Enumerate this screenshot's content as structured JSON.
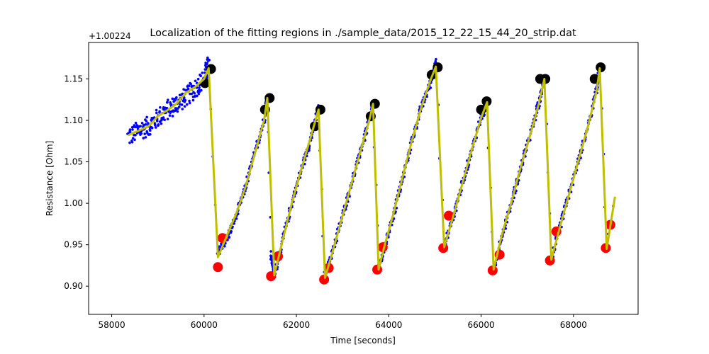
{
  "chart_data": {
    "type": "scatter",
    "title": "Localization of the fitting regions in ./sample_data/2015_12_22_15_44_20_strip.dat",
    "xlabel": "Time [seconds]",
    "ylabel": "Resistance [Ohm]",
    "offset_label": "+1.00224",
    "xlim": [
      57500,
      69400
    ],
    "ylim": [
      0.866,
      1.194
    ],
    "xticks": [
      58000,
      60000,
      62000,
      64000,
      66000,
      68000
    ],
    "yticks": [
      0.9,
      0.95,
      1.0,
      1.05,
      1.1,
      1.15
    ],
    "xtick_labels": [
      "58000",
      "60000",
      "62000",
      "64000",
      "66000",
      "68000"
    ],
    "ytick_labels": [
      "0.90",
      "0.95",
      "1.00",
      "1.05",
      "1.10",
      "1.15"
    ],
    "grid": false,
    "legend": "none",
    "series": [
      {
        "kind": "scatter-dense",
        "color": "#0000ff",
        "points": [
          [
            58350,
            1.08
          ],
          [
            58600,
            1.088
          ],
          [
            58800,
            1.093
          ],
          [
            59000,
            1.103
          ],
          [
            59200,
            1.112
          ],
          [
            59400,
            1.12
          ],
          [
            59600,
            1.128
          ],
          [
            59800,
            1.138
          ],
          [
            60000,
            1.15
          ],
          [
            60100,
            1.168
          ],
          [
            60300,
            0.94
          ],
          [
            60500,
            0.958
          ],
          [
            60700,
            0.985
          ],
          [
            60900,
            1.02
          ],
          [
            61100,
            1.06
          ],
          [
            61300,
            1.1
          ],
          [
            61370,
            1.13
          ],
          [
            61450,
            0.94
          ],
          [
            61520,
            0.912
          ],
          [
            61700,
            0.955
          ],
          [
            61900,
            1.0
          ],
          [
            62100,
            1.04
          ],
          [
            62300,
            1.075
          ],
          [
            62480,
            1.115
          ],
          [
            62600,
            0.91
          ],
          [
            62800,
            0.945
          ],
          [
            63000,
            0.985
          ],
          [
            63200,
            1.025
          ],
          [
            63400,
            1.065
          ],
          [
            63600,
            1.103
          ],
          [
            63660,
            1.12
          ],
          [
            63780,
            0.92
          ],
          [
            63900,
            0.945
          ],
          [
            64100,
            0.985
          ],
          [
            64300,
            1.03
          ],
          [
            64500,
            1.075
          ],
          [
            64700,
            1.115
          ],
          [
            64900,
            1.145
          ],
          [
            65020,
            1.17
          ],
          [
            65200,
            0.948
          ],
          [
            65400,
            0.985
          ],
          [
            65600,
            1.025
          ],
          [
            65800,
            1.065
          ],
          [
            66000,
            1.103
          ],
          [
            66130,
            1.12
          ],
          [
            66270,
            0.92
          ],
          [
            66450,
            0.96
          ],
          [
            66650,
            1.0
          ],
          [
            66850,
            1.04
          ],
          [
            67050,
            1.08
          ],
          [
            67250,
            1.12
          ],
          [
            67370,
            1.15
          ],
          [
            67520,
            0.932
          ],
          [
            67700,
            0.97
          ],
          [
            67900,
            1.01
          ],
          [
            68100,
            1.05
          ],
          [
            68300,
            1.09
          ],
          [
            68500,
            1.135
          ],
          [
            68570,
            1.165
          ],
          [
            68720,
            0.945
          ],
          [
            68900,
            1.01
          ]
        ]
      },
      {
        "kind": "line",
        "color": "#bfbf00",
        "points": [
          [
            58350,
            1.082
          ],
          [
            58600,
            1.088
          ],
          [
            58800,
            1.093
          ],
          [
            59000,
            1.105
          ],
          [
            59200,
            1.112
          ],
          [
            59400,
            1.12
          ],
          [
            59600,
            1.133
          ],
          [
            59800,
            1.14
          ],
          [
            60000,
            1.15
          ],
          [
            60100,
            1.163
          ],
          [
            60300,
            0.935
          ],
          [
            60450,
            0.955
          ],
          [
            60700,
            0.988
          ],
          [
            60900,
            1.02
          ],
          [
            61100,
            1.06
          ],
          [
            61300,
            1.1
          ],
          [
            61370,
            1.127
          ],
          [
            61520,
            0.913
          ],
          [
            61700,
            0.955
          ],
          [
            61900,
            1.0
          ],
          [
            62100,
            1.04
          ],
          [
            62300,
            1.078
          ],
          [
            62480,
            1.113
          ],
          [
            62620,
            0.91
          ],
          [
            62800,
            0.945
          ],
          [
            63000,
            0.985
          ],
          [
            63200,
            1.025
          ],
          [
            63400,
            1.065
          ],
          [
            63600,
            1.105
          ],
          [
            63660,
            1.12
          ],
          [
            63780,
            0.92
          ],
          [
            63900,
            0.947
          ],
          [
            64100,
            0.987
          ],
          [
            64300,
            1.032
          ],
          [
            64500,
            1.075
          ],
          [
            64700,
            1.115
          ],
          [
            64900,
            1.148
          ],
          [
            65020,
            1.165
          ],
          [
            65200,
            0.947
          ],
          [
            65400,
            0.985
          ],
          [
            65600,
            1.025
          ],
          [
            65800,
            1.065
          ],
          [
            66000,
            1.103
          ],
          [
            66130,
            1.122
          ],
          [
            66270,
            0.92
          ],
          [
            66450,
            0.962
          ],
          [
            66650,
            1.0
          ],
          [
            66850,
            1.042
          ],
          [
            67050,
            1.08
          ],
          [
            67250,
            1.12
          ],
          [
            67370,
            1.15
          ],
          [
            67520,
            0.932
          ],
          [
            67700,
            0.97
          ],
          [
            67900,
            1.01
          ],
          [
            68100,
            1.05
          ],
          [
            68300,
            1.09
          ],
          [
            68500,
            1.135
          ],
          [
            68570,
            1.163
          ],
          [
            68720,
            0.945
          ],
          [
            68900,
            1.008
          ]
        ]
      },
      {
        "kind": "markers",
        "color": "#000000",
        "points": [
          [
            60020,
            1.145
          ],
          [
            60150,
            1.162
          ],
          [
            61320,
            1.113
          ],
          [
            61420,
            1.127
          ],
          [
            62400,
            1.093
          ],
          [
            62520,
            1.113
          ],
          [
            63610,
            1.105
          ],
          [
            63700,
            1.12
          ],
          [
            64930,
            1.155
          ],
          [
            65060,
            1.164
          ],
          [
            66000,
            1.113
          ],
          [
            66120,
            1.123
          ],
          [
            67280,
            1.15
          ],
          [
            67390,
            1.15
          ],
          [
            68460,
            1.15
          ],
          [
            68590,
            1.164
          ]
        ]
      },
      {
        "kind": "markers",
        "color": "#ff0000",
        "points": [
          [
            60300,
            0.923
          ],
          [
            60400,
            0.958
          ],
          [
            61450,
            0.912
          ],
          [
            61600,
            0.936
          ],
          [
            62600,
            0.908
          ],
          [
            62700,
            0.922
          ],
          [
            63750,
            0.92
          ],
          [
            63870,
            0.947
          ],
          [
            65180,
            0.946
          ],
          [
            65300,
            0.985
          ],
          [
            66250,
            0.919
          ],
          [
            66400,
            0.938
          ],
          [
            67490,
            0.931
          ],
          [
            67630,
            0.966
          ],
          [
            68700,
            0.946
          ],
          [
            68800,
            0.974
          ]
        ]
      }
    ]
  }
}
